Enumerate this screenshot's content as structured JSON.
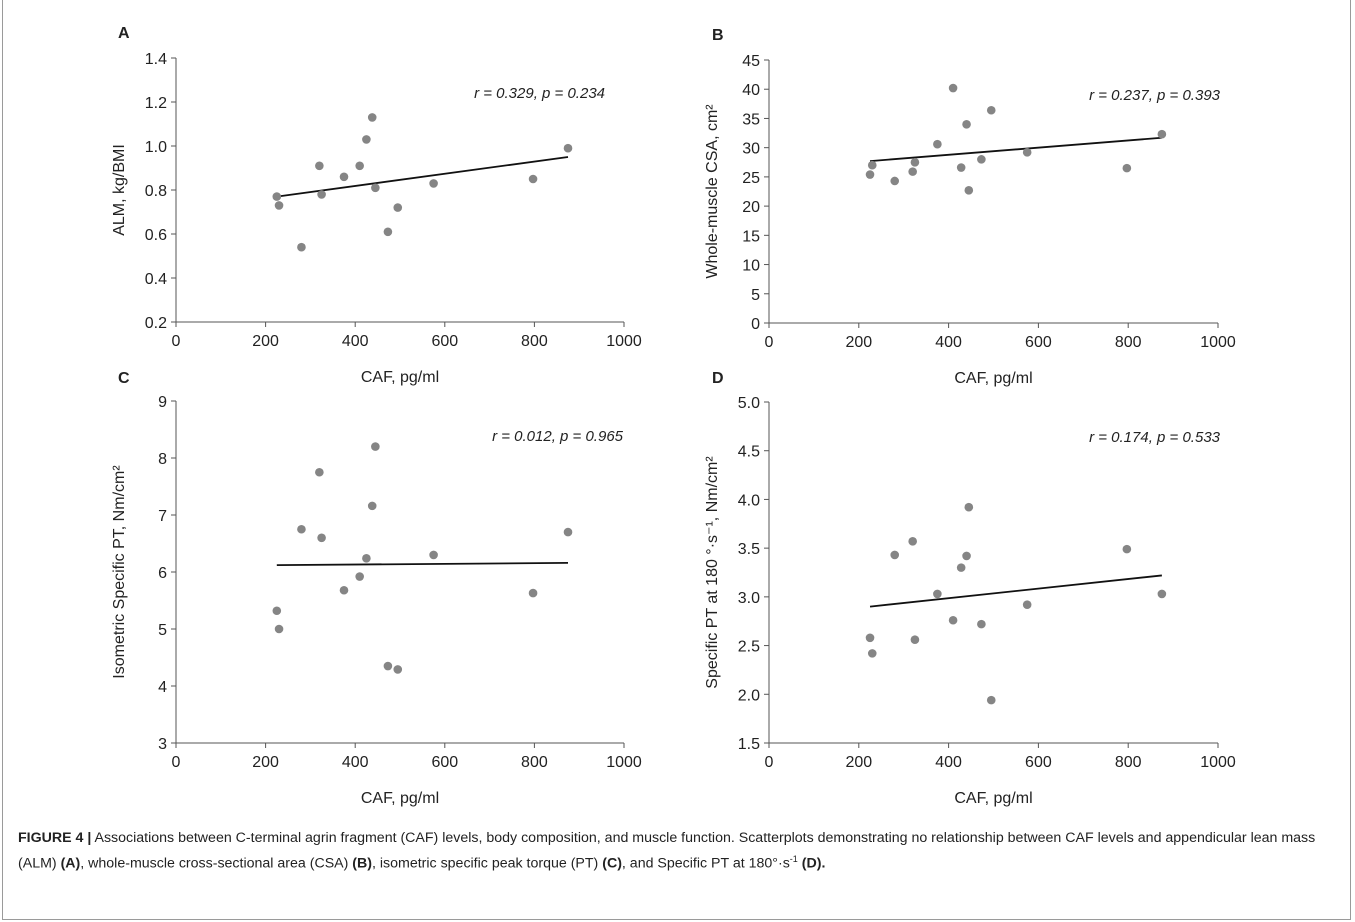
{
  "figure_caption": {
    "label": "FIGURE 4 |",
    "text_1": " Associations between C-terminal agrin fragment (CAF) levels, body composition, and muscle function. Scatterplots demonstrating no relationship between CAF levels and appendicular lean mass (ALM) ",
    "ref_a": "(A)",
    "text_2": ", whole-muscle cross-sectional area (CSA) ",
    "ref_b": "(B)",
    "text_3": ", isometric specific peak torque (PT) ",
    "ref_c": "(C)",
    "text_4": ", and Specific PT at 180°·s",
    "sup": "-1",
    "ref_d": " (D)."
  },
  "colors": {
    "points": "#858585",
    "trendline": "#111111",
    "axis": "#555555",
    "text": "#222222"
  },
  "chart_data": [
    {
      "panel": "A",
      "type": "scatter",
      "xlabel": "CAF, pg/ml",
      "ylabel": "ALM, kg/BMI",
      "xlim": [
        0,
        1000
      ],
      "ylim": [
        0.2,
        1.4
      ],
      "xticks": [
        0,
        200,
        400,
        600,
        800,
        1000
      ],
      "yticks": [
        0.2,
        0.4,
        0.6,
        0.8,
        1.0,
        1.2,
        1.4
      ],
      "ytick_labels": [
        "0.2",
        "0.4",
        "0.6",
        "0.8",
        "1.0",
        "1.2",
        "1.4"
      ],
      "annotation": "r = 0.329, p = 0.234",
      "points": [
        [
          225,
          0.77
        ],
        [
          230,
          0.73
        ],
        [
          280,
          0.54
        ],
        [
          320,
          0.91
        ],
        [
          325,
          0.78
        ],
        [
          375,
          0.86
        ],
        [
          410,
          0.91
        ],
        [
          425,
          1.03
        ],
        [
          438,
          1.13
        ],
        [
          445,
          0.81
        ],
        [
          473,
          0.61
        ],
        [
          495,
          0.72
        ],
        [
          575,
          0.83
        ],
        [
          797,
          0.85
        ],
        [
          875,
          0.99
        ]
      ],
      "trendline": [
        [
          225,
          0.77
        ],
        [
          875,
          0.95
        ]
      ]
    },
    {
      "panel": "B",
      "type": "scatter",
      "xlabel": "CAF, pg/ml",
      "ylabel": "Whole-muscle CSA, cm²",
      "xlim": [
        0,
        1000
      ],
      "ylim": [
        0,
        45
      ],
      "xticks": [
        0,
        200,
        400,
        600,
        800,
        1000
      ],
      "yticks": [
        0,
        5,
        10,
        15,
        20,
        25,
        30,
        35,
        40,
        45
      ],
      "ytick_labels": [
        "0",
        "5",
        "10",
        "15",
        "20",
        "25",
        "30",
        "35",
        "40",
        "45"
      ],
      "annotation": "r = 0.237, p = 0.393",
      "points": [
        [
          225,
          25.4
        ],
        [
          230,
          27.0
        ],
        [
          280,
          24.3
        ],
        [
          320,
          25.9
        ],
        [
          325,
          27.5
        ],
        [
          375,
          30.6
        ],
        [
          410,
          40.2
        ],
        [
          428,
          26.6
        ],
        [
          440,
          34.0
        ],
        [
          445,
          22.7
        ],
        [
          473,
          28.0
        ],
        [
          495,
          36.4
        ],
        [
          575,
          29.2
        ],
        [
          797,
          26.5
        ],
        [
          875,
          32.3
        ]
      ],
      "trendline": [
        [
          225,
          27.7
        ],
        [
          875,
          31.7
        ]
      ]
    },
    {
      "panel": "C",
      "type": "scatter",
      "xlabel": "CAF, pg/ml",
      "ylabel": "Isometric Specific PT, Nm/cm²",
      "xlim": [
        0,
        1000
      ],
      "ylim": [
        3,
        9
      ],
      "xticks": [
        0,
        200,
        400,
        600,
        800,
        1000
      ],
      "yticks": [
        3,
        4,
        5,
        6,
        7,
        8,
        9
      ],
      "ytick_labels": [
        "3",
        "4",
        "5",
        "6",
        "7",
        "8",
        "9"
      ],
      "annotation": "r = 0.012, p = 0.965",
      "points": [
        [
          225,
          5.32
        ],
        [
          230,
          5.0
        ],
        [
          280,
          6.75
        ],
        [
          320,
          7.75
        ],
        [
          325,
          6.6
        ],
        [
          375,
          5.68
        ],
        [
          410,
          5.92
        ],
        [
          425,
          6.24
        ],
        [
          438,
          7.16
        ],
        [
          445,
          8.2
        ],
        [
          473,
          4.35
        ],
        [
          495,
          4.29
        ],
        [
          575,
          6.3
        ],
        [
          797,
          5.63
        ],
        [
          875,
          6.7
        ]
      ],
      "trendline": [
        [
          225,
          6.12
        ],
        [
          875,
          6.16
        ]
      ]
    },
    {
      "panel": "D",
      "type": "scatter",
      "xlabel": "CAF, pg/ml",
      "ylabel": "Specific PT at 180 °·s⁻¹, Nm/cm²",
      "xlim": [
        0,
        1000
      ],
      "ylim": [
        1.5,
        5.0
      ],
      "xticks": [
        0,
        200,
        400,
        600,
        800,
        1000
      ],
      "yticks": [
        1.5,
        2.0,
        2.5,
        3.0,
        3.5,
        4.0,
        4.5,
        5.0
      ],
      "ytick_labels": [
        "1.5",
        "2.0",
        "2.5",
        "3.0",
        "3.5",
        "4.0",
        "4.5",
        "5.0"
      ],
      "annotation": "r = 0.174, p = 0.533",
      "points": [
        [
          225,
          2.58
        ],
        [
          230,
          2.42
        ],
        [
          280,
          3.43
        ],
        [
          320,
          3.57
        ],
        [
          325,
          2.56
        ],
        [
          375,
          3.03
        ],
        [
          410,
          2.76
        ],
        [
          428,
          3.3
        ],
        [
          440,
          3.42
        ],
        [
          445,
          3.92
        ],
        [
          473,
          2.72
        ],
        [
          495,
          1.94
        ],
        [
          575,
          2.92
        ],
        [
          797,
          3.49
        ],
        [
          875,
          3.03
        ]
      ],
      "trendline": [
        [
          225,
          2.9
        ],
        [
          875,
          3.22
        ]
      ]
    }
  ]
}
